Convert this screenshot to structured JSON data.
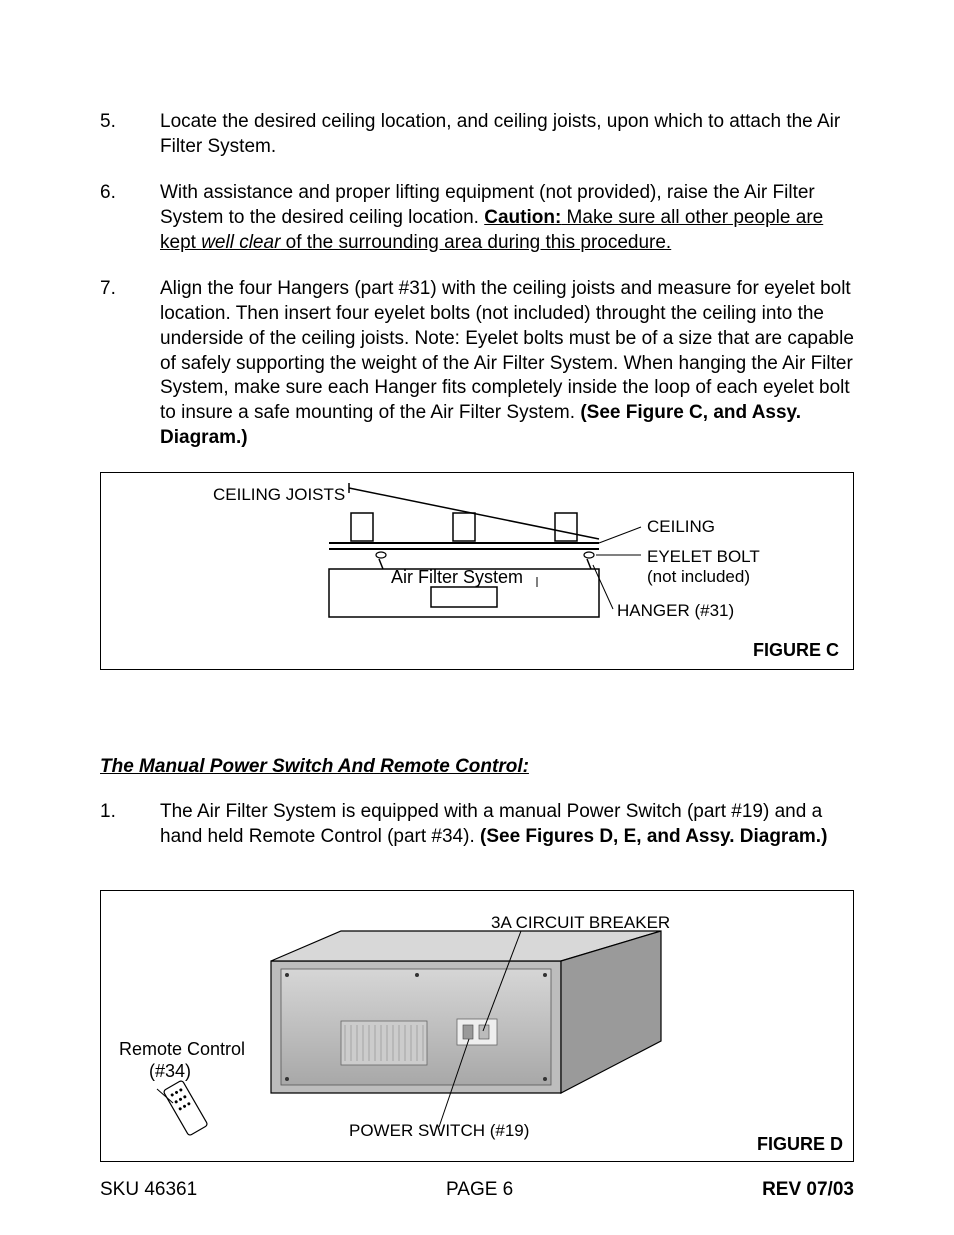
{
  "items": [
    {
      "num": "5.",
      "html": "Locate the desired ceiling location, and ceiling joists, upon which to attach the Air Filter System."
    },
    {
      "num": "6.",
      "html": "With assistance and proper lifting equipment (not provided), raise the Air Filter System to the desired ceiling location.  <span class='caution-bold'>Caution:</span><span class='caution-underline'>  Make sure all other people are kept </span><span class='caution-underline italic'>well clear</span><span class='caution-underline'> of the surrounding area during this procedure.</span>"
    },
    {
      "num": "7.",
      "html": "Align the four Hangers (part #31) with the ceiling joists and measure for eyelet bolt location.  Then insert four eyelet bolts (not included) throught the ceiling into the underside of the ceiling joists.  Note:  Eyelet bolts must be of a size that are capable of safely supporting the weight of the Air Filter System.  When hanging the Air Filter System, make sure each Hanger fits completely inside the loop of each eyelet bolt to insure a safe mounting of the Air Filter System. <span class='bold'>(See Figure C, and Assy. Diagram.)</span>"
    }
  ],
  "figC": {
    "ceilingJoists": "CEILING JOISTS",
    "ceiling": "CEILING",
    "eyeletBolt": "EYELET BOLT",
    "notIncluded": "(not included)",
    "hanger": "HANGER (#31)",
    "airFilter": "Air Filter System",
    "label": "FIGURE C"
  },
  "sectionTitle": "The Manual Power Switch And Remote Control:",
  "items2": [
    {
      "num": "1.",
      "html": "The Air Filter System is equipped with a manual Power Switch (part #19) and a hand held Remote Control (part #34).  <span class='bold'>(See Figures D, E, and Assy. Diagram.)</span>"
    }
  ],
  "figD": {
    "circuitBreaker": "3A CIRCUIT BREAKER",
    "remoteControl": "Remote Control",
    "remoteNum": "(#34)",
    "powerSwitch": "POWER SWITCH (#19)",
    "label": "FIGURE D"
  },
  "footer": {
    "sku": "SKU 46361",
    "page": "PAGE 6",
    "rev": "REV 07/03"
  }
}
